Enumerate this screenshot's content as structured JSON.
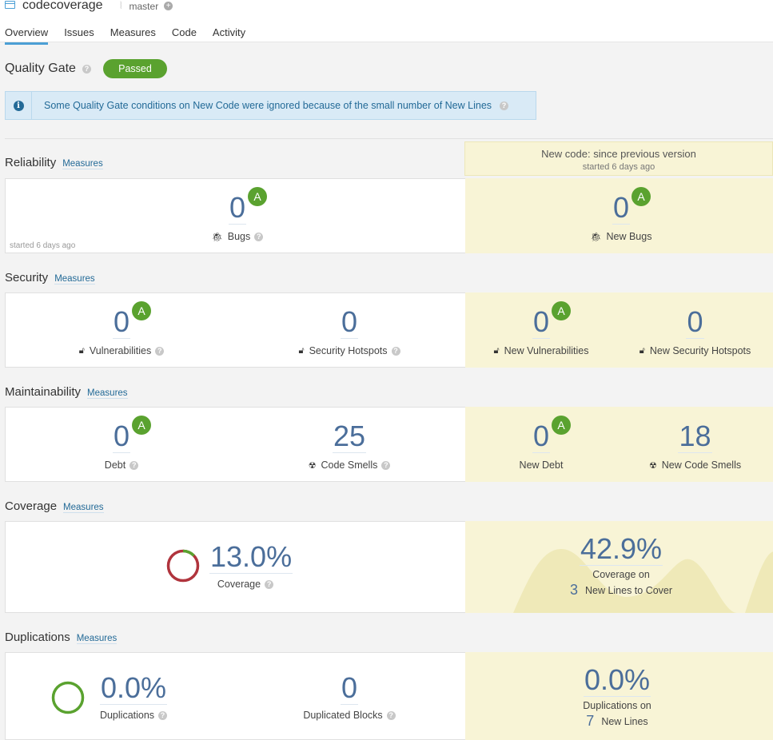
{
  "header": {
    "project": "codecoverage",
    "branch": "master",
    "tabs": [
      "Overview",
      "Issues",
      "Measures",
      "Code",
      "Activity"
    ]
  },
  "quality_gate": {
    "title": "Quality Gate",
    "status": "Passed",
    "status_color": "#5aa22f",
    "notice": "Some Quality Gate conditions on New Code were ignored because of the small number of New Lines"
  },
  "new_code": {
    "title": "New code: since previous version",
    "subtitle": "started 6 days ago"
  },
  "reliability": {
    "title": "Reliability",
    "link": "Measures",
    "started": "started 6 days ago",
    "bugs": {
      "value": "0",
      "grade": "A",
      "label": "Bugs"
    },
    "new_bugs": {
      "value": "0",
      "grade": "A",
      "label": "New Bugs"
    }
  },
  "security": {
    "title": "Security",
    "link": "Measures",
    "vulns": {
      "value": "0",
      "grade": "A",
      "label": "Vulnerabilities"
    },
    "hotspots": {
      "value": "0",
      "label": "Security Hotspots"
    },
    "new_vulns": {
      "value": "0",
      "grade": "A",
      "label": "New Vulnerabilities"
    },
    "new_hotspots": {
      "value": "0",
      "label": "New Security Hotspots"
    }
  },
  "maintainability": {
    "title": "Maintainability",
    "link": "Measures",
    "debt": {
      "value": "0",
      "grade": "A",
      "label": "Debt"
    },
    "smells": {
      "value": "25",
      "label": "Code Smells"
    },
    "new_debt": {
      "value": "0",
      "grade": "A",
      "label": "New Debt"
    },
    "new_smells": {
      "value": "18",
      "label": "New Code Smells"
    }
  },
  "coverage": {
    "title": "Coverage",
    "link": "Measures",
    "value": "13.0%",
    "fraction": 0.13,
    "label": "Coverage",
    "new_value": "42.9%",
    "new_label": "Coverage on",
    "new_lines": "3",
    "new_lines_label": "New Lines to Cover"
  },
  "duplications": {
    "title": "Duplications",
    "link": "Measures",
    "value": "0.0%",
    "label": "Duplications",
    "blocks": {
      "value": "0",
      "label": "Duplicated Blocks"
    },
    "new_value": "0.0%",
    "new_label": "Duplications on",
    "new_lines": "7",
    "new_lines_label": "New Lines"
  }
}
